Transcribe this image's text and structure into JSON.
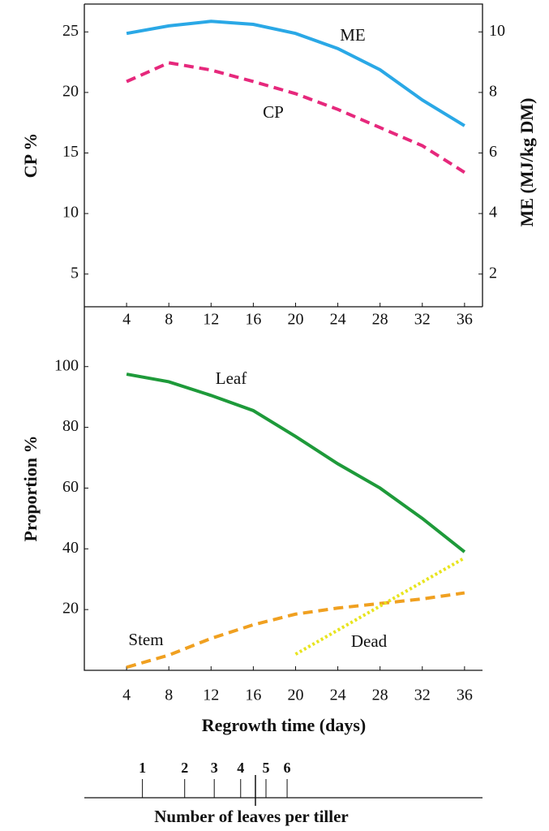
{
  "chart_data": [
    {
      "type": "line",
      "ylabel": "CP %",
      "y2label": "ME (MJ/kg DM)",
      "x": [
        4,
        8,
        12,
        16,
        20,
        24,
        28,
        32,
        36
      ],
      "xlim": [
        0,
        37.7
      ],
      "xticks": [
        4,
        8,
        12,
        16,
        20,
        24,
        28,
        32,
        36
      ],
      "ylim": [
        2.3,
        27.3
      ],
      "yticks": [
        5,
        10,
        15,
        20,
        25
      ],
      "y2lim": [
        0.92,
        10.92
      ],
      "y2ticks": [
        2,
        4,
        6,
        8,
        10
      ],
      "series": [
        {
          "name": "ME",
          "color": "#2aa8e6",
          "dash": "solid",
          "axis": "y2",
          "values": [
            9.95,
            10.2,
            10.35,
            10.25,
            9.95,
            9.45,
            8.75,
            7.75,
            6.9
          ]
        },
        {
          "name": "CP",
          "color": "#e6287c",
          "dash": "dashed",
          "values": [
            20.9,
            22.45,
            21.85,
            20.9,
            19.9,
            18.6,
            17.1,
            15.6,
            13.4
          ]
        }
      ]
    },
    {
      "type": "line",
      "ylabel": "Proportion %",
      "xlabel": "Regrowth time (days)",
      "x": [
        4,
        8,
        12,
        16,
        20,
        24,
        28,
        32,
        36
      ],
      "xlim": [
        0,
        37.7
      ],
      "xticks": [
        4,
        8,
        12,
        16,
        20,
        24,
        28,
        32,
        36
      ],
      "ylim": [
        0,
        119.7
      ],
      "yticks": [
        20,
        40,
        60,
        80,
        100
      ],
      "series": [
        {
          "name": "Leaf",
          "color": "#1e9a3a",
          "dash": "solid",
          "values": [
            97.5,
            95,
            90.5,
            85.5,
            77,
            68,
            60,
            50,
            39
          ]
        },
        {
          "name": "Stem",
          "color": "#f0a020",
          "dash": "dashed",
          "values": [
            1,
            5,
            10.5,
            15,
            18.5,
            20.5,
            22,
            23.5,
            25.5
          ]
        },
        {
          "name": "Dead",
          "color": "#e8e41e",
          "dash": "dotted",
          "x": [
            20,
            36
          ],
          "values": [
            5.3,
            37
          ]
        }
      ]
    }
  ],
  "leaves_axis": {
    "title": "Number of leaves per tiller",
    "ticks": [
      1,
      2,
      3,
      4,
      5,
      6
    ],
    "days": [
      5.5,
      9.5,
      12.3,
      14.8,
      17.2,
      19.2
    ],
    "marker_day": 16.2
  }
}
